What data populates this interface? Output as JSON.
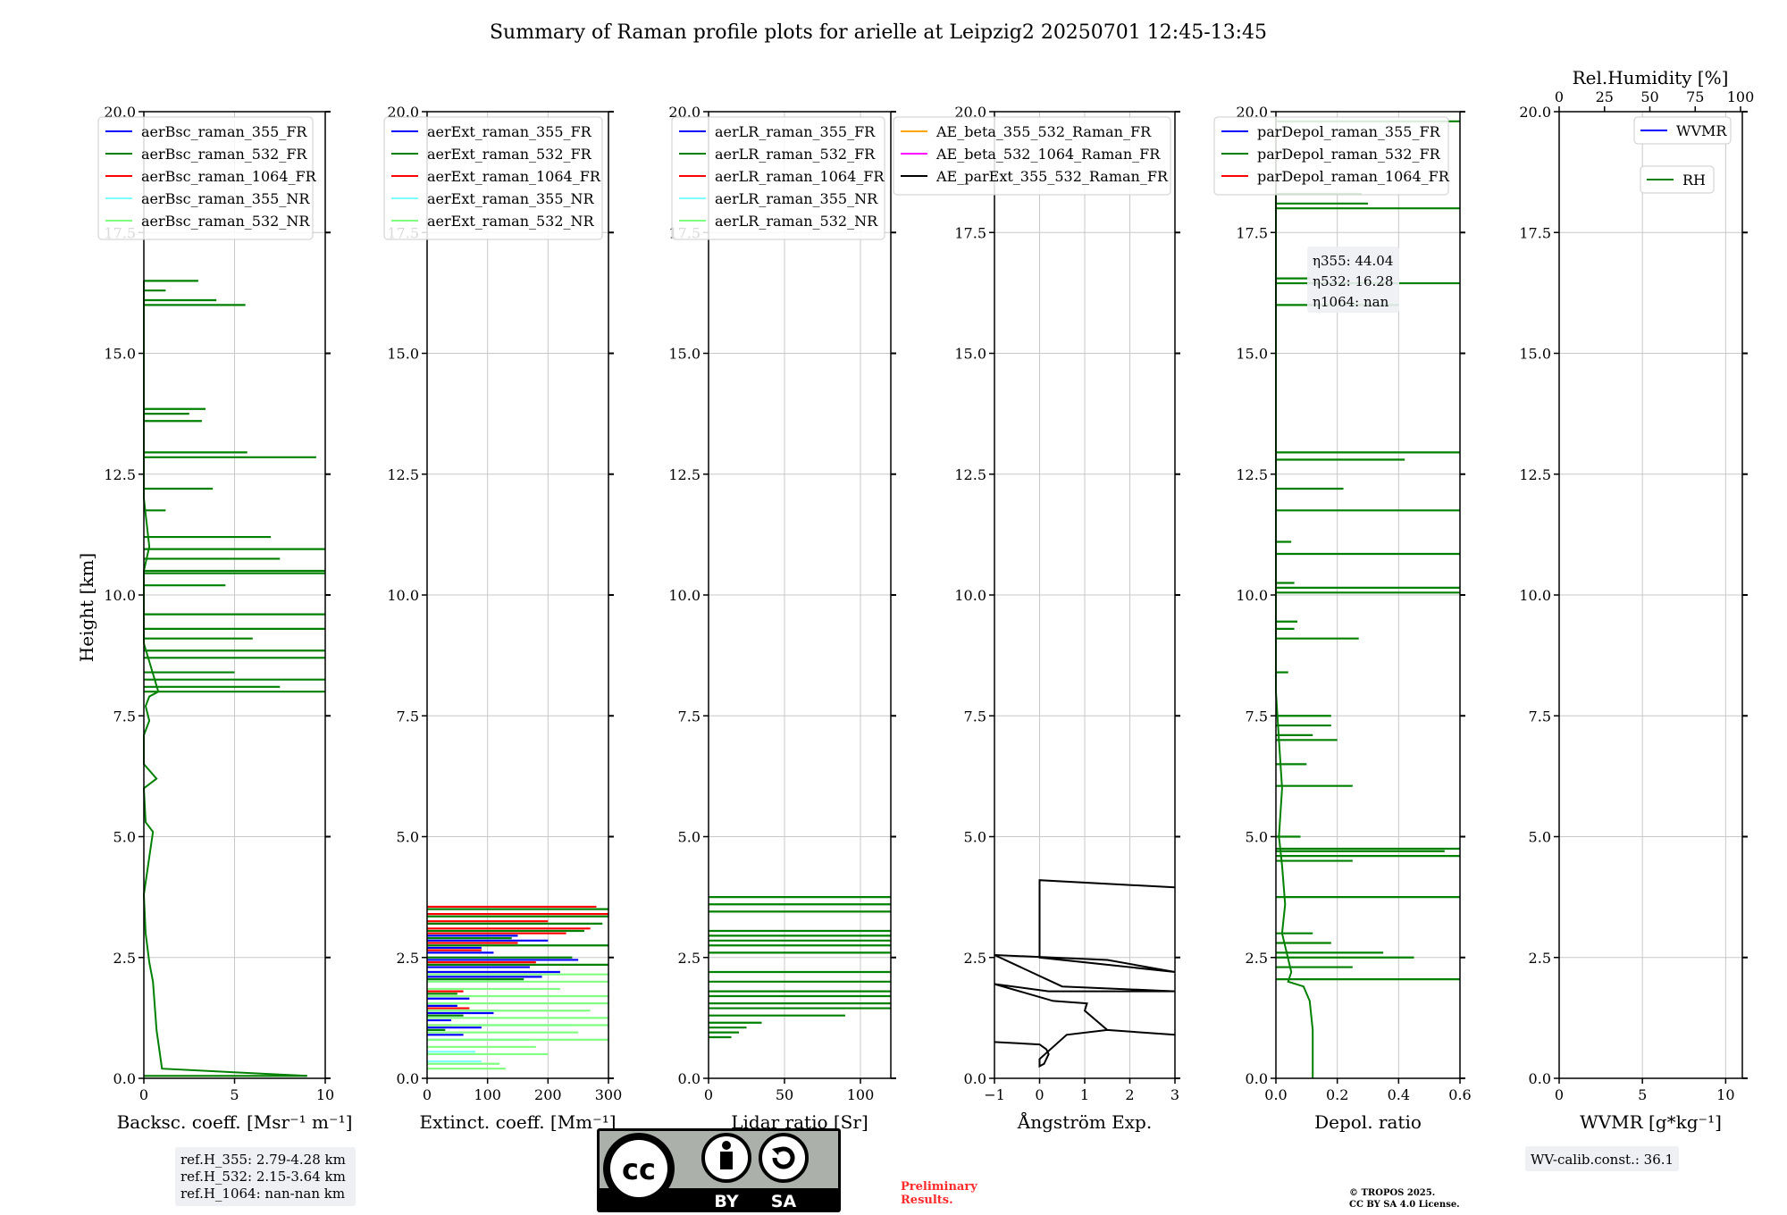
{
  "title": "Summary of Raman profile plots for arielle at Leipzig2 20250701 12:45-13:45",
  "ylabel": "Height [km]",
  "y_ticks": [
    "0.0",
    "2.5",
    "5.0",
    "7.5",
    "10.0",
    "12.5",
    "15.0",
    "17.5",
    "20.0"
  ],
  "panels": [
    {
      "xlabel": "Backsc. coeff. [Msr⁻¹ m⁻¹]",
      "x_ticks": [
        "0",
        "5",
        "10"
      ],
      "legend": [
        "aerBsc_raman_355_FR",
        "aerBsc_raman_532_FR",
        "aerBsc_raman_1064_FR",
        "aerBsc_raman_355_NR",
        "aerBsc_raman_532_NR"
      ]
    },
    {
      "xlabel": "Extinct. coeff. [Mm⁻¹]",
      "x_ticks": [
        "0",
        "100",
        "200",
        "300"
      ],
      "legend": [
        "aerExt_raman_355_FR",
        "aerExt_raman_532_FR",
        "aerExt_raman_1064_FR",
        "aerExt_raman_355_NR",
        "aerExt_raman_532_NR"
      ]
    },
    {
      "xlabel": "Lidar ratio [Sr]",
      "x_ticks": [
        "0",
        "50",
        "100"
      ],
      "legend": [
        "aerLR_raman_355_FR",
        "aerLR_raman_532_FR",
        "aerLR_raman_1064_FR",
        "aerLR_raman_355_NR",
        "aerLR_raman_532_NR"
      ]
    },
    {
      "xlabel": "Ångström Exp.",
      "x_ticks": [
        "−1",
        "0",
        "1",
        "2",
        "3"
      ],
      "legend": [
        "AE_beta_355_532_Raman_FR",
        "AE_beta_532_1064_Raman_FR",
        "AE_parExt_355_532_Raman_FR"
      ]
    },
    {
      "xlabel": "Depol. ratio",
      "x_ticks": [
        "0.0",
        "0.2",
        "0.4",
        "0.6"
      ],
      "legend": [
        "parDepol_raman_355_FR",
        "parDepol_raman_532_FR",
        "parDepol_raman_1064_FR"
      ],
      "annotation": [
        "η355: 44.04",
        "η532: 16.28",
        "η1064: nan"
      ]
    },
    {
      "xlabel": "WVMR [g*kg⁻¹]",
      "x_ticks": [
        "0",
        "5",
        "10"
      ],
      "top_label": "Rel.Humidity [%]",
      "top_ticks": [
        "0",
        "25",
        "50",
        "75",
        "100"
      ],
      "legend": [
        "WVMR",
        "RH"
      ],
      "note": "WV-calib.const.: 36.1"
    }
  ],
  "ref_heights": [
    "ref.H_355: 2.79-4.28 km",
    "ref.H_532: 2.15-3.64 km",
    "ref.H_1064: nan-nan km"
  ],
  "license_badge": {
    "cc": "cc",
    "by": "BY",
    "sa": "SA"
  },
  "preliminary": [
    "Preliminary",
    "Results."
  ],
  "copyright": [
    "© TROPOS 2025.",
    "CC BY SA 4.0 License."
  ],
  "colors": {
    "ch355": "#0000ff",
    "ch532": "#008000",
    "ch1064": "#ff0000",
    "ch355nr": "#80ffff",
    "ch532nr": "#80ff80",
    "ae_beta_355_532": "#ffa500",
    "ae_beta_532_1064": "#ff00ff",
    "ae_parext": "#000000",
    "preliminary": "#ff2a2a"
  },
  "chart_data": [
    {
      "type": "line",
      "xlabel": "Backsc. coeff. [Msr⁻¹ m⁻¹]",
      "ylabel": "Height [km]",
      "xlim": [
        0,
        10
      ],
      "ylim": [
        0,
        20
      ],
      "series": [
        {
          "name": "aerBsc_raman_532_FR",
          "color": "#008000",
          "x": [
            9.0,
            1.0,
            0.7,
            0.6,
            0.5,
            0.3,
            0.1,
            0.0,
            0.5,
            0.1,
            0.0,
            0.7,
            0.0,
            0.0,
            0.3,
            0.1,
            0.3,
            0.8,
            0.0,
            0.0,
            0.3,
            0.0,
            0.0,
            0.0
          ],
          "y": [
            0.05,
            0.2,
            1.0,
            1.5,
            2.0,
            2.4,
            3.0,
            3.8,
            5.1,
            5.3,
            6.0,
            6.2,
            6.5,
            7.1,
            7.4,
            7.7,
            7.9,
            8.0,
            9.0,
            10.5,
            11.0,
            12.0,
            15.5,
            16.5
          ],
          "spikes": [
            [
              0.05,
              9.0
            ],
            [
              8.0,
              10.0
            ],
            [
              8.1,
              7.5
            ],
            [
              8.25,
              10.0
            ],
            [
              8.4,
              5.0
            ],
            [
              8.7,
              10.0
            ],
            [
              8.85,
              10.0
            ],
            [
              9.1,
              6.0
            ],
            [
              9.3,
              10.0
            ],
            [
              9.6,
              10.0
            ],
            [
              10.2,
              4.5
            ],
            [
              10.45,
              10.0
            ],
            [
              10.5,
              10.0
            ],
            [
              10.75,
              7.5
            ],
            [
              10.95,
              10.0
            ],
            [
              11.2,
              7.0
            ],
            [
              11.75,
              1.2
            ],
            [
              12.2,
              3.8
            ],
            [
              12.85,
              9.5
            ],
            [
              12.95,
              5.7
            ],
            [
              13.6,
              3.2
            ],
            [
              13.75,
              2.5
            ],
            [
              13.85,
              3.4
            ],
            [
              16.0,
              5.6
            ],
            [
              16.1,
              4.0
            ],
            [
              16.5,
              3.0
            ],
            [
              16.3,
              1.2
            ]
          ]
        },
        {
          "name": "aerBsc_raman_355_FR",
          "color": "#0000ff",
          "x": [],
          "y": []
        },
        {
          "name": "aerBsc_raman_1064_FR",
          "color": "#ff0000",
          "x": [],
          "y": []
        },
        {
          "name": "aerBsc_raman_355_NR",
          "color": "#80ffff",
          "x": [],
          "y": []
        },
        {
          "name": "aerBsc_raman_532_NR",
          "color": "#80ff80",
          "x": [],
          "y": []
        }
      ]
    },
    {
      "type": "line",
      "xlabel": "Extinct. coeff. [Mm⁻¹]",
      "xlim": [
        0,
        300
      ],
      "ylim": [
        0,
        20
      ],
      "series": [
        {
          "name": "aerExt_raman_355_FR",
          "color": "#0000ff",
          "spikes": [
            [
              0.9,
              60
            ],
            [
              1.05,
              90
            ],
            [
              1.2,
              40
            ],
            [
              1.35,
              110
            ],
            [
              1.5,
              50
            ],
            [
              1.65,
              70
            ],
            [
              2.1,
              190
            ],
            [
              2.2,
              220
            ],
            [
              2.3,
              170
            ],
            [
              2.45,
              250
            ],
            [
              2.6,
              110
            ],
            [
              2.7,
              90
            ],
            [
              2.85,
              200
            ],
            [
              2.95,
              150
            ]
          ]
        },
        {
          "name": "aerExt_raman_532_FR",
          "color": "#008000",
          "spikes": [
            [
              1.0,
              30
            ],
            [
              1.3,
              60
            ],
            [
              1.75,
              50
            ],
            [
              2.05,
              160
            ],
            [
              2.35,
              300
            ],
            [
              2.5,
              240
            ],
            [
              2.75,
              300
            ],
            [
              2.9,
              140
            ],
            [
              3.05,
              260
            ],
            [
              3.2,
              290
            ],
            [
              3.35,
              300
            ],
            [
              3.5,
              300
            ]
          ]
        },
        {
          "name": "aerExt_raman_1064_FR",
          "color": "#ff0000",
          "spikes": [
            [
              1.1,
              40
            ],
            [
              1.45,
              70
            ],
            [
              1.8,
              60
            ],
            [
              2.4,
              180
            ],
            [
              2.65,
              90
            ],
            [
              2.8,
              150
            ],
            [
              3.0,
              230
            ],
            [
              3.1,
              270
            ],
            [
              3.25,
              200
            ],
            [
              3.4,
              300
            ],
            [
              3.55,
              280
            ]
          ]
        },
        {
          "name": "aerExt_raman_355_NR",
          "color": "#80ffff",
          "spikes": [
            [
              0.35,
              90
            ],
            [
              0.55,
              80
            ],
            [
              0.8,
              170
            ],
            [
              1.1,
              240
            ],
            [
              1.4,
              120
            ]
          ]
        },
        {
          "name": "aerExt_raman_532_NR",
          "color": "#80ff80",
          "spikes": [
            [
              0.2,
              130
            ],
            [
              0.3,
              120
            ],
            [
              0.5,
              200
            ],
            [
              0.65,
              180
            ],
            [
              0.8,
              300
            ],
            [
              0.95,
              250
            ],
            [
              1.1,
              300
            ],
            [
              1.25,
              300
            ],
            [
              1.4,
              270
            ],
            [
              1.55,
              300
            ],
            [
              1.7,
              300
            ],
            [
              1.85,
              220
            ],
            [
              2.0,
              300
            ],
            [
              2.15,
              300
            ]
          ]
        }
      ]
    },
    {
      "type": "line",
      "xlabel": "Lidar ratio [Sr]",
      "xlim": [
        0,
        120
      ],
      "ylim": [
        0,
        20
      ],
      "series": [
        {
          "name": "aerLR_raman_532_FR",
          "color": "#008000",
          "spikes": [
            [
              0.85,
              15
            ],
            [
              0.95,
              20
            ],
            [
              1.05,
              25
            ],
            [
              1.15,
              35
            ],
            [
              1.3,
              90
            ],
            [
              1.45,
              120
            ],
            [
              1.55,
              120
            ],
            [
              1.7,
              120
            ],
            [
              1.8,
              120
            ],
            [
              2.0,
              120
            ],
            [
              2.2,
              120
            ],
            [
              2.6,
              120
            ],
            [
              2.75,
              120
            ],
            [
              2.85,
              120
            ],
            [
              2.95,
              120
            ],
            [
              3.05,
              120
            ],
            [
              3.45,
              120
            ],
            [
              3.6,
              120
            ],
            [
              3.75,
              120
            ]
          ]
        },
        {
          "name": "aerLR_raman_355_FR",
          "color": "#0000ff",
          "spikes": []
        },
        {
          "name": "aerLR_raman_1064_FR",
          "color": "#ff0000",
          "spikes": []
        },
        {
          "name": "aerLR_raman_355_NR",
          "color": "#80ffff",
          "spikes": []
        },
        {
          "name": "aerLR_raman_532_NR",
          "color": "#80ff80",
          "spikes": []
        }
      ]
    },
    {
      "type": "line",
      "xlabel": "Ångström Exp.",
      "xlim": [
        -1,
        3
      ],
      "ylim": [
        0,
        20
      ],
      "series": [
        {
          "name": "AE_parExt_355_532_Raman_FR",
          "color": "#000000",
          "x": [
            -1.0,
            0.0,
            0.15,
            0.2,
            0.1,
            0.0,
            0.0,
            0.6,
            1.5,
            3.0,
            1.5,
            1.0,
            1.05,
            0.3,
            -1.0,
            0.2,
            1.5,
            3.0,
            0.5,
            -1.0,
            1.5,
            2.4,
            3.0,
            0.0,
            0.0,
            3.0
          ],
          "y": [
            0.75,
            0.7,
            0.6,
            0.5,
            0.3,
            0.25,
            0.4,
            0.9,
            1.0,
            0.9,
            1.0,
            1.4,
            1.55,
            1.6,
            1.95,
            1.8,
            1.8,
            1.8,
            1.9,
            2.55,
            2.45,
            2.3,
            2.2,
            2.5,
            4.1,
            3.95
          ]
        },
        {
          "name": "AE_beta_355_532_Raman_FR",
          "color": "#ffa500",
          "x": [],
          "y": []
        },
        {
          "name": "AE_beta_532_1064_Raman_FR",
          "color": "#ff00ff",
          "x": [],
          "y": []
        }
      ]
    },
    {
      "type": "line",
      "xlabel": "Depol. ratio",
      "xlim": [
        0,
        0.6
      ],
      "ylim": [
        0,
        20
      ],
      "series": [
        {
          "name": "parDepol_raman_532_FR",
          "color": "#008000",
          "x": [
            0.12,
            0.12,
            0.11,
            0.09,
            0.04,
            0.05,
            0.02,
            0.03,
            0.02,
            0.01,
            0.02,
            0.01,
            0.0,
            0.0,
            0.0,
            0.0,
            0.0,
            0.0
          ],
          "y": [
            0.0,
            1.0,
            1.6,
            1.9,
            2.0,
            2.2,
            3.0,
            3.6,
            4.4,
            5.0,
            6.0,
            7.0,
            8.0,
            9.0,
            10.0,
            13.0,
            16.0,
            19.9
          ],
          "spikes": [
            [
              2.05,
              0.6
            ],
            [
              2.3,
              0.25
            ],
            [
              2.5,
              0.45
            ],
            [
              2.6,
              0.35
            ],
            [
              2.8,
              0.18
            ],
            [
              3.0,
              0.12
            ],
            [
              3.75,
              0.6
            ],
            [
              4.5,
              0.25
            ],
            [
              4.6,
              0.6
            ],
            [
              4.7,
              0.55
            ],
            [
              4.75,
              0.6
            ],
            [
              5.0,
              0.08
            ],
            [
              6.05,
              0.25
            ],
            [
              6.5,
              0.1
            ],
            [
              7.0,
              0.2
            ],
            [
              7.1,
              0.12
            ],
            [
              7.3,
              0.18
            ],
            [
              7.5,
              0.18
            ],
            [
              8.4,
              0.04
            ],
            [
              9.1,
              0.27
            ],
            [
              9.3,
              0.06
            ],
            [
              9.45,
              0.07
            ],
            [
              10.05,
              0.6
            ],
            [
              10.15,
              0.6
            ],
            [
              10.25,
              0.06
            ],
            [
              10.85,
              0.6
            ],
            [
              11.1,
              0.05
            ],
            [
              11.75,
              0.6
            ],
            [
              12.2,
              0.22
            ],
            [
              12.8,
              0.42
            ],
            [
              12.95,
              0.6
            ],
            [
              16.0,
              0.4
            ],
            [
              16.45,
              0.6
            ],
            [
              16.55,
              0.11
            ],
            [
              18.0,
              0.6
            ],
            [
              18.1,
              0.3
            ],
            [
              18.3,
              0.28
            ],
            [
              19.8,
              0.6
            ]
          ]
        },
        {
          "name": "parDepol_raman_355_FR",
          "color": "#0000ff",
          "spikes": []
        },
        {
          "name": "parDepol_raman_1064_FR",
          "color": "#ff0000",
          "spikes": []
        }
      ]
    },
    {
      "type": "line",
      "xlabel": "WVMR [g*kg⁻¹]",
      "xlim": [
        0,
        11
      ],
      "ylim": [
        0,
        20
      ],
      "top_axis": {
        "label": "Rel.Humidity [%]",
        "lim": [
          0,
          100
        ]
      },
      "series": [
        {
          "name": "WVMR",
          "color": "#0000ff",
          "x": [],
          "y": []
        },
        {
          "name": "RH",
          "color": "#008000",
          "x": [],
          "y": []
        }
      ]
    }
  ]
}
